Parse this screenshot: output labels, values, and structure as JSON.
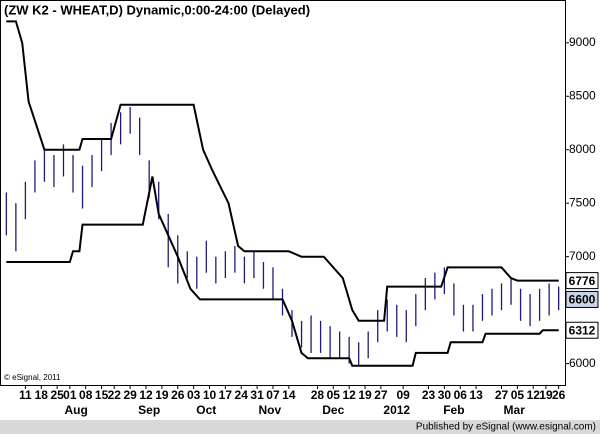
{
  "chart_data": {
    "type": "ohlc",
    "title": "(ZW K2 - WHEAT,D) Dynamic,0:00-24:00 (Delayed)",
    "copyright": "© eSignal, 2011",
    "footer": "Published by eSignal (www.esignal.com)",
    "color": "#1c1c78",
    "xlim": [
      -2,
      176
    ],
    "ylim": [
      5800,
      9400
    ],
    "yticks": [
      6000,
      7000,
      7500,
      8000,
      8500,
      9000
    ],
    "price_labels": [
      6776,
      6600,
      6312
    ],
    "xticks": [
      {
        "value": 6,
        "label": "11"
      },
      {
        "value": 11,
        "label": "18"
      },
      {
        "value": 16,
        "label": "25"
      },
      {
        "value": 20,
        "label": "01"
      },
      {
        "value": 25,
        "label": "08"
      },
      {
        "value": 30,
        "label": "15"
      },
      {
        "value": 34,
        "label": "22"
      },
      {
        "value": 39,
        "label": "29"
      },
      {
        "value": 44,
        "label": "12"
      },
      {
        "value": 49,
        "label": "19"
      },
      {
        "value": 54,
        "label": "26"
      },
      {
        "value": 59,
        "label": "03"
      },
      {
        "value": 64,
        "label": "10"
      },
      {
        "value": 69,
        "label": "17"
      },
      {
        "value": 74,
        "label": "24"
      },
      {
        "value": 79,
        "label": "31"
      },
      {
        "value": 84,
        "label": "07"
      },
      {
        "value": 89,
        "label": "14"
      },
      {
        "value": 98,
        "label": "28"
      },
      {
        "value": 103,
        "label": "05"
      },
      {
        "value": 108,
        "label": "12"
      },
      {
        "value": 113,
        "label": "19"
      },
      {
        "value": 118,
        "label": "27"
      },
      {
        "value": 125,
        "label": "09"
      },
      {
        "value": 133,
        "label": "23"
      },
      {
        "value": 138,
        "label": "30"
      },
      {
        "value": 143,
        "label": "06"
      },
      {
        "value": 148,
        "label": "13"
      },
      {
        "value": 156,
        "label": "27"
      },
      {
        "value": 161,
        "label": "05"
      },
      {
        "value": 166,
        "label": "12"
      },
      {
        "value": 170,
        "label": "19"
      },
      {
        "value": 174,
        "label": "26"
      }
    ],
    "month_ticks": [
      {
        "value": 22,
        "label": "Aug"
      },
      {
        "value": 45,
        "label": "Sep"
      },
      {
        "value": 63,
        "label": "Oct"
      },
      {
        "value": 83,
        "label": "Nov"
      },
      {
        "value": 103,
        "label": "Dec"
      },
      {
        "value": 123,
        "label": "2012"
      },
      {
        "value": 141,
        "label": "Feb"
      },
      {
        "value": 160,
        "label": "Mar"
      }
    ],
    "x": [
      0,
      3,
      6,
      9,
      12,
      15,
      18,
      21,
      24,
      27,
      30,
      33,
      36,
      39,
      42,
      45,
      48,
      51,
      54,
      57,
      60,
      63,
      66,
      69,
      72,
      75,
      78,
      81,
      84,
      87,
      90,
      93,
      96,
      99,
      102,
      105,
      108,
      111,
      114,
      117,
      120,
      123,
      126,
      129,
      132,
      135,
      138,
      141,
      144,
      147,
      150,
      153,
      156,
      159,
      162,
      165,
      168,
      171,
      174
    ],
    "high": [
      7600,
      7500,
      7700,
      7900,
      8000,
      7950,
      8050,
      7950,
      7850,
      7950,
      8100,
      8250,
      8350,
      8400,
      8300,
      7900,
      7700,
      7400,
      7200,
      7050,
      7000,
      7150,
      7000,
      7050,
      7100,
      7000,
      7050,
      6950,
      6900,
      6700,
      6500,
      6400,
      6450,
      6400,
      6350,
      6300,
      6250,
      6200,
      6300,
      6500,
      6600,
      6550,
      6500,
      6650,
      6800,
      6850,
      6900,
      6750,
      6550,
      6550,
      6650,
      6700,
      6750,
      6800,
      6700,
      6650,
      6700,
      6750,
      6720
    ],
    "low": [
      7200,
      7050,
      7350,
      7600,
      7700,
      7650,
      7750,
      7600,
      7450,
      7650,
      7800,
      7950,
      8050,
      8150,
      7950,
      7550,
      7350,
      6900,
      6750,
      6800,
      6700,
      6850,
      6750,
      6800,
      6850,
      6750,
      6800,
      6700,
      6600,
      6450,
      6250,
      6150,
      6100,
      6100,
      6050,
      6050,
      6000,
      5980,
      6050,
      6200,
      6300,
      6250,
      6200,
      6350,
      6500,
      6600,
      6650,
      6450,
      6300,
      6300,
      6400,
      6450,
      6500,
      6550,
      6400,
      6350,
      6400,
      6450,
      6500
    ],
    "upper_channel": {
      "x": [
        0,
        3,
        5,
        7,
        12,
        23,
        24,
        33,
        36,
        59,
        62,
        65,
        70,
        73,
        75,
        89,
        93,
        100,
        106,
        109,
        111,
        119,
        120,
        137,
        139,
        156,
        159,
        161,
        174
      ],
      "values": [
        9200,
        9200,
        9000,
        8450,
        8000,
        8000,
        8100,
        8100,
        8420,
        8420,
        8000,
        7800,
        7500,
        7100,
        7050,
        7050,
        7000,
        7000,
        6800,
        6500,
        6400,
        6400,
        6720,
        6720,
        6900,
        6900,
        6800,
        6776,
        6776
      ]
    },
    "lower_channel": {
      "x": [
        0,
        20,
        21,
        23,
        24,
        43,
        46,
        48,
        54,
        58,
        61,
        87,
        90,
        93,
        95,
        108,
        109,
        128,
        129,
        139,
        140,
        150,
        151,
        168,
        169,
        174
      ],
      "values": [
        6950,
        6950,
        7050,
        7050,
        7300,
        7300,
        7750,
        7400,
        7000,
        6700,
        6600,
        6600,
        6400,
        6100,
        6050,
        6050,
        5980,
        5980,
        6100,
        6100,
        6200,
        6200,
        6280,
        6280,
        6312,
        6312
      ]
    }
  }
}
